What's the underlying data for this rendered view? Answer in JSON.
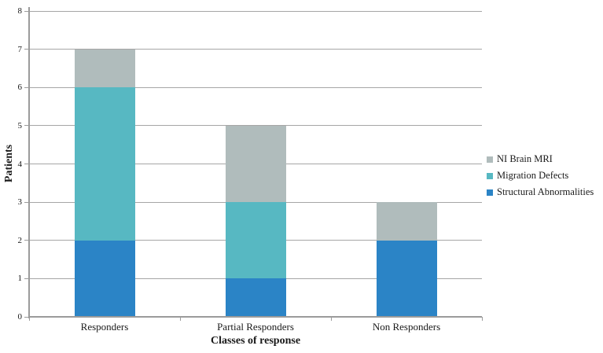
{
  "figure": {
    "background": "#ffffff",
    "gridline_color": "#a6a6a6",
    "axis_color": "#9b9b9b",
    "text_color": "#1a1a1a"
  },
  "chart_data": {
    "type": "bar",
    "stacked": true,
    "title": "",
    "xlabel": "Classes of response",
    "ylabel": "Patients",
    "categories": [
      "Responders",
      "Partial Responders",
      "Non Responders"
    ],
    "series": [
      {
        "name": "Structural Abnormalities",
        "color": "#2b84c6",
        "values": [
          2,
          1,
          2
        ]
      },
      {
        "name": "Migration Defects",
        "color": "#57b8c2",
        "values": [
          4,
          2,
          0
        ]
      },
      {
        "name": "NI Brain MRI",
        "color": "#b0bcbc",
        "values": [
          1,
          2,
          1
        ]
      }
    ],
    "stack_totals": [
      7,
      5,
      3
    ],
    "ylim": [
      0,
      8
    ],
    "yticks": [
      "0",
      "1",
      "2",
      "3",
      "4",
      "5",
      "6",
      "7",
      "8"
    ],
    "grid": true,
    "legend_position": "right",
    "legend_order_top_to_bottom": [
      "NI Brain MRI",
      "Migration Defects",
      "Structural Abnormalities"
    ]
  }
}
